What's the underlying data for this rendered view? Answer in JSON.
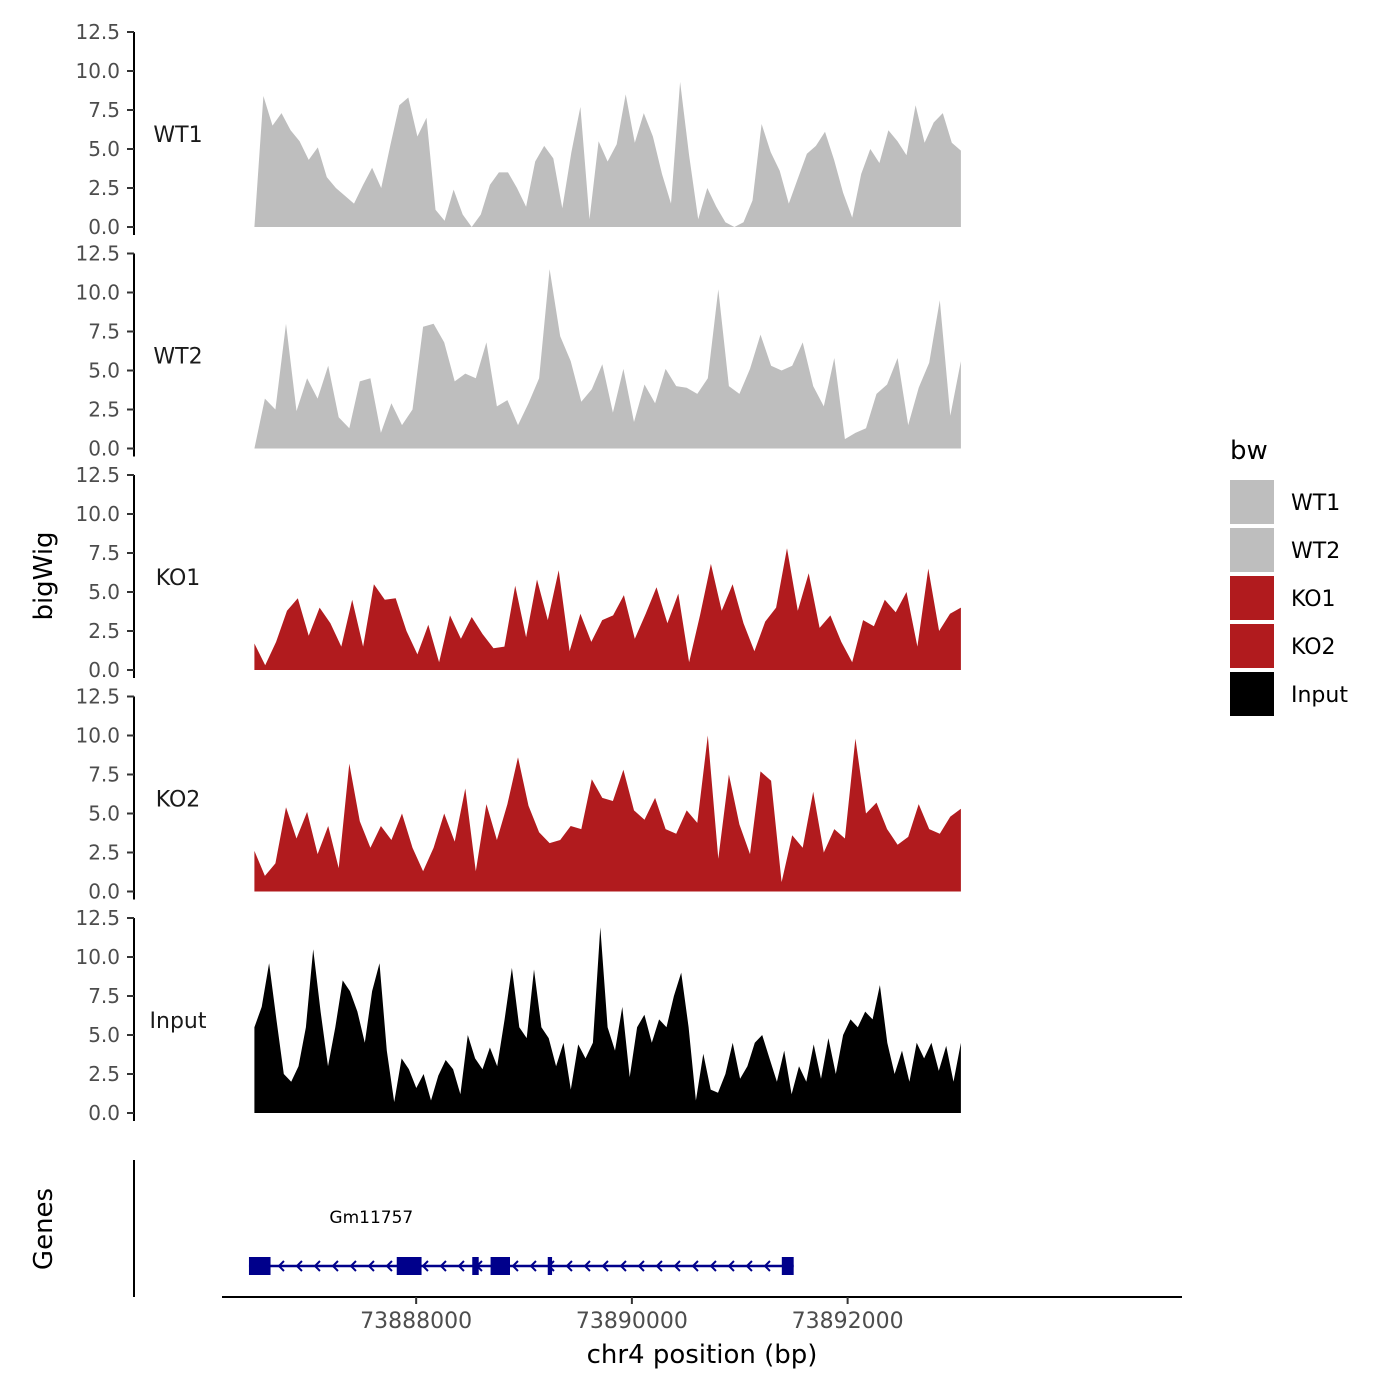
{
  "chart_data": {
    "type": "area",
    "ylabel": "bigWig",
    "xlabel": "chr4 position (bp)",
    "gene_track_label": "Genes",
    "x_range": [
      73886200,
      73895100
    ],
    "x_ticks": [
      73888000,
      73890000,
      73892000
    ],
    "x_tick_labels": [
      "73888000",
      "73890000",
      "73892000"
    ],
    "y_range": [
      0,
      12.5
    ],
    "y_ticks": [
      0,
      2.5,
      5,
      7.5,
      10,
      12.5
    ],
    "y_tick_labels": [
      "0.0",
      "2.5",
      "5.0",
      "7.5",
      "10.0",
      "12.5"
    ],
    "data_x_range": [
      73886500,
      73893050
    ],
    "legend": {
      "title": "bw",
      "position": "right",
      "items": [
        {
          "label": "WT1",
          "color": "#bebebe"
        },
        {
          "label": "WT2",
          "color": "#bebebe"
        },
        {
          "label": "KO1",
          "color": "#b11b1e"
        },
        {
          "label": "KO2",
          "color": "#b11b1e"
        },
        {
          "label": "Input",
          "color": "#000000"
        }
      ]
    },
    "series": [
      {
        "name": "WT1",
        "color": "#bebebe",
        "values": [
          0,
          8.4,
          6.5,
          7.3,
          6.2,
          5.5,
          4.3,
          5.1,
          3.2,
          2.5,
          2.0,
          1.5,
          2.7,
          3.8,
          2.5,
          5.2,
          7.8,
          8.3,
          5.8,
          7.0,
          1.1,
          0.4,
          2.4,
          0.8,
          0,
          0.8,
          2.7,
          3.5,
          3.5,
          2.5,
          1.3,
          4.2,
          5.2,
          4.4,
          1.2,
          4.8,
          7.7,
          0.5,
          5.5,
          4.2,
          5.3,
          8.5,
          5.4,
          7.3,
          5.8,
          3.4,
          1.5,
          9.3,
          4.6,
          0.5,
          2.5,
          1.3,
          0.3,
          0,
          0.3,
          1.7,
          6.6,
          4.8,
          3.6,
          1.5,
          3.1,
          4.7,
          5.2,
          6.1,
          4.3,
          2.2,
          0.6,
          3.4,
          5.0,
          4.1,
          6.2,
          5.5,
          4.6,
          7.8,
          5.4,
          6.7,
          7.3,
          5.4,
          4.9
        ]
      },
      {
        "name": "WT2",
        "color": "#bebebe",
        "values": [
          0,
          3.2,
          2.5,
          8.0,
          2.4,
          4.5,
          3.2,
          5.3,
          2.0,
          1.3,
          4.3,
          4.5,
          1.0,
          2.9,
          1.5,
          2.5,
          7.8,
          8.0,
          6.8,
          4.3,
          4.8,
          4.5,
          6.8,
          2.7,
          3.1,
          1.5,
          2.9,
          4.5,
          11.5,
          7.2,
          5.6,
          3.0,
          3.8,
          5.4,
          2.3,
          5.1,
          1.7,
          4.1,
          2.9,
          5.1,
          4.0,
          3.9,
          3.5,
          4.5,
          10.2,
          4.0,
          3.5,
          5.1,
          7.3,
          5.3,
          5.0,
          5.3,
          6.8,
          4.0,
          2.7,
          5.8,
          0.6,
          1.0,
          1.3,
          3.5,
          4.1,
          5.8,
          1.5,
          3.9,
          5.5,
          9.5,
          2.1,
          5.6
        ]
      },
      {
        "name": "KO1",
        "color": "#b11b1e",
        "values": [
          1.7,
          0.3,
          1.8,
          3.8,
          4.6,
          2.2,
          4.0,
          3.0,
          1.5,
          4.5,
          1.5,
          5.5,
          4.5,
          4.6,
          2.5,
          1.0,
          2.9,
          0.5,
          3.5,
          2.0,
          3.4,
          2.3,
          1.4,
          1.5,
          5.4,
          2.1,
          5.8,
          3.2,
          6.4,
          1.2,
          3.6,
          1.8,
          3.2,
          3.5,
          4.8,
          2.0,
          3.6,
          5.3,
          3.0,
          4.9,
          0.5,
          3.5,
          6.8,
          3.8,
          5.5,
          3.0,
          1.2,
          3.1,
          4.0,
          7.8,
          3.8,
          6.2,
          2.7,
          3.5,
          1.8,
          0.5,
          3.2,
          2.8,
          4.5,
          3.7,
          5.0,
          1.5,
          6.5,
          2.5,
          3.6,
          4.0
        ]
      },
      {
        "name": "KO2",
        "color": "#b11b1e",
        "values": [
          2.6,
          1.0,
          1.8,
          5.4,
          3.4,
          5.1,
          2.4,
          4.2,
          1.5,
          8.2,
          4.5,
          2.8,
          4.2,
          3.3,
          5.0,
          2.8,
          1.3,
          2.8,
          5.0,
          3.2,
          6.6,
          1.3,
          5.6,
          3.3,
          5.6,
          8.6,
          5.5,
          3.8,
          3.1,
          3.3,
          4.2,
          4.0,
          7.2,
          6.0,
          5.8,
          7.8,
          5.2,
          4.6,
          6.0,
          4.0,
          3.7,
          5.2,
          4.4,
          10.0,
          2.1,
          7.5,
          4.3,
          2.4,
          7.7,
          7.1,
          0.6,
          3.6,
          2.8,
          6.4,
          2.5,
          4.0,
          3.4,
          9.8,
          5.0,
          5.7,
          4.0,
          3.0,
          3.5,
          5.6,
          4.0,
          3.7,
          4.8,
          5.3
        ]
      },
      {
        "name": "Input",
        "color": "#000000",
        "values": [
          5.5,
          6.8,
          9.6,
          6.0,
          2.5,
          2.0,
          3.0,
          5.5,
          10.5,
          6.5,
          3.0,
          5.5,
          8.5,
          7.8,
          6.5,
          4.5,
          7.8,
          9.6,
          4.0,
          0.7,
          3.5,
          2.8,
          1.6,
          2.5,
          0.8,
          2.4,
          3.4,
          2.8,
          1.2,
          5.0,
          3.5,
          2.8,
          4.2,
          3.0,
          6.0,
          9.3,
          5.5,
          4.8,
          9.2,
          5.5,
          4.8,
          3.0,
          4.5,
          1.5,
          4.4,
          3.5,
          4.5,
          11.9,
          5.5,
          4.0,
          6.8,
          2.3,
          5.5,
          6.3,
          4.5,
          6.0,
          5.5,
          7.5,
          9.0,
          5.5,
          0.8,
          3.8,
          1.5,
          1.3,
          2.5,
          4.5,
          2.2,
          3.0,
          4.5,
          5.0,
          3.5,
          2.0,
          4.0,
          1.2,
          3.0,
          2.0,
          4.4,
          2.2,
          4.8,
          2.5,
          5.0,
          6.0,
          5.5,
          6.5,
          6.0,
          8.2,
          4.5,
          2.5,
          4.0,
          2.0,
          4.5,
          3.5,
          4.5,
          2.7,
          4.3,
          2.0,
          4.5
        ]
      }
    ],
    "genes": [
      {
        "name": "Gm11757",
        "strand": "-",
        "start": 73886450,
        "end": 73891500,
        "exons": [
          [
            73886450,
            73886650
          ],
          [
            73887820,
            73888050
          ],
          [
            73888520,
            73888580
          ],
          [
            73888690,
            73888870
          ],
          [
            73889220,
            73889260
          ],
          [
            73891390,
            73891500
          ]
        ]
      }
    ]
  }
}
